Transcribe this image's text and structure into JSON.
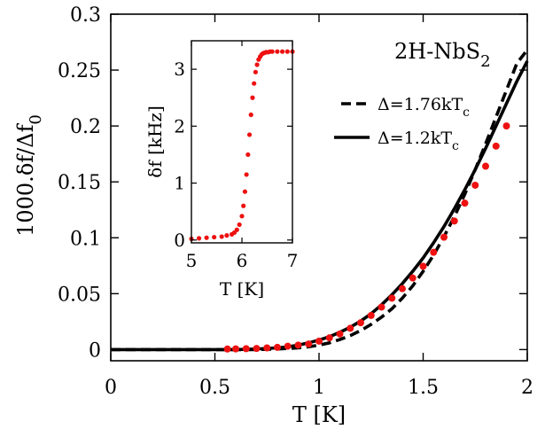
{
  "chart_data": [
    {
      "type": "line",
      "role": "main",
      "xlabel": "T [K]",
      "ylabel": "1000.δf/Δf",
      "ylabel_sub": "0",
      "xlim": [
        0,
        2
      ],
      "ylim": [
        -0.01,
        0.3
      ],
      "x_ticks": [
        "0",
        "0.5",
        "1",
        "1.5",
        "2"
      ],
      "y_ticks": [
        "0",
        "0.05",
        "0.1",
        "0.15",
        "0.2",
        "0.25",
        "0.3"
      ],
      "annotation": {
        "main": "2H-NbS",
        "sub": "2"
      },
      "legend": [
        {
          "label": "Δ=1.76kT",
          "label_sub": "c",
          "style": "dashed"
        },
        {
          "label": "Δ=1.2kT",
          "label_sub": "c",
          "style": "solid"
        }
      ],
      "series": [
        {
          "style": "dashed",
          "color": "#000000",
          "x": [
            0,
            0.5,
            0.7,
            0.8,
            0.85,
            0.9,
            0.95,
            1.0,
            1.05,
            1.1,
            1.15,
            1.2,
            1.25,
            1.3,
            1.35,
            1.4,
            1.45,
            1.5,
            1.55,
            1.6,
            1.65,
            1.7,
            1.75,
            1.8,
            1.85,
            1.9,
            1.95,
            2.0
          ],
          "y": [
            0,
            0,
            0,
            0.0005,
            0.001,
            0.0015,
            0.0025,
            0.004,
            0.006,
            0.009,
            0.0125,
            0.017,
            0.0225,
            0.029,
            0.0365,
            0.046,
            0.057,
            0.07,
            0.0845,
            0.101,
            0.119,
            0.139,
            0.161,
            0.184,
            0.208,
            0.232,
            0.256,
            0.268
          ]
        },
        {
          "style": "solid",
          "color": "#000000",
          "x": [
            0,
            0.5,
            0.6,
            0.7,
            0.75,
            0.8,
            0.85,
            0.9,
            0.95,
            1.0,
            1.05,
            1.1,
            1.15,
            1.2,
            1.25,
            1.3,
            1.35,
            1.4,
            1.45,
            1.5,
            1.55,
            1.6,
            1.65,
            1.7,
            1.75,
            1.8,
            1.85,
            1.9,
            1.95,
            2.0
          ],
          "y": [
            0,
            0,
            0,
            0.0005,
            0.001,
            0.0015,
            0.0025,
            0.004,
            0.006,
            0.0085,
            0.0115,
            0.0155,
            0.02,
            0.0255,
            0.032,
            0.04,
            0.049,
            0.059,
            0.07,
            0.082,
            0.0955,
            0.11,
            0.126,
            0.143,
            0.161,
            0.18,
            0.2,
            0.22,
            0.24,
            0.258
          ]
        },
        {
          "style": "markers",
          "color": "#ee1111",
          "x": [
            0.56,
            0.6,
            0.65,
            0.7,
            0.75,
            0.8,
            0.85,
            0.9,
            0.95,
            1.0,
            1.05,
            1.1,
            1.15,
            1.2,
            1.25,
            1.3,
            1.35,
            1.4,
            1.45,
            1.5,
            1.55,
            1.6,
            1.65,
            1.7,
            1.75,
            1.8,
            1.85,
            1.9
          ],
          "y": [
            0.0005,
            0.0006,
            0.0008,
            0.001,
            0.0015,
            0.002,
            0.003,
            0.004,
            0.005,
            0.0075,
            0.0105,
            0.014,
            0.019,
            0.024,
            0.0305,
            0.038,
            0.046,
            0.0545,
            0.064,
            0.0745,
            0.087,
            0.1005,
            0.115,
            0.131,
            0.147,
            0.164,
            0.182,
            0.2
          ]
        }
      ]
    },
    {
      "type": "scatter",
      "role": "inset",
      "xlabel": "T [K]",
      "ylabel": "δf [kHz]",
      "xlim": [
        5,
        7
      ],
      "ylim": [
        -0.05,
        3.5
      ],
      "x_ticks": [
        "5",
        "6",
        "7"
      ],
      "y_ticks": [
        "0",
        "1",
        "2",
        "3"
      ],
      "series": [
        {
          "style": "markers",
          "color": "#ee1111",
          "x": [
            5.0,
            5.15,
            5.3,
            5.45,
            5.6,
            5.7,
            5.8,
            5.85,
            5.9,
            5.95,
            6.0,
            6.03,
            6.06,
            6.09,
            6.12,
            6.15,
            6.18,
            6.21,
            6.24,
            6.27,
            6.3,
            6.33,
            6.36,
            6.39,
            6.42,
            6.45,
            6.48,
            6.52,
            6.56,
            6.6,
            6.7,
            6.8,
            6.9,
            7.0
          ],
          "y": [
            0.02,
            0.03,
            0.04,
            0.05,
            0.06,
            0.08,
            0.1,
            0.13,
            0.18,
            0.27,
            0.42,
            0.6,
            0.85,
            1.15,
            1.5,
            1.85,
            2.2,
            2.5,
            2.75,
            2.95,
            3.08,
            3.17,
            3.22,
            3.26,
            3.28,
            3.29,
            3.3,
            3.3,
            3.31,
            3.31,
            3.31,
            3.31,
            3.31,
            3.31
          ]
        }
      ]
    }
  ]
}
